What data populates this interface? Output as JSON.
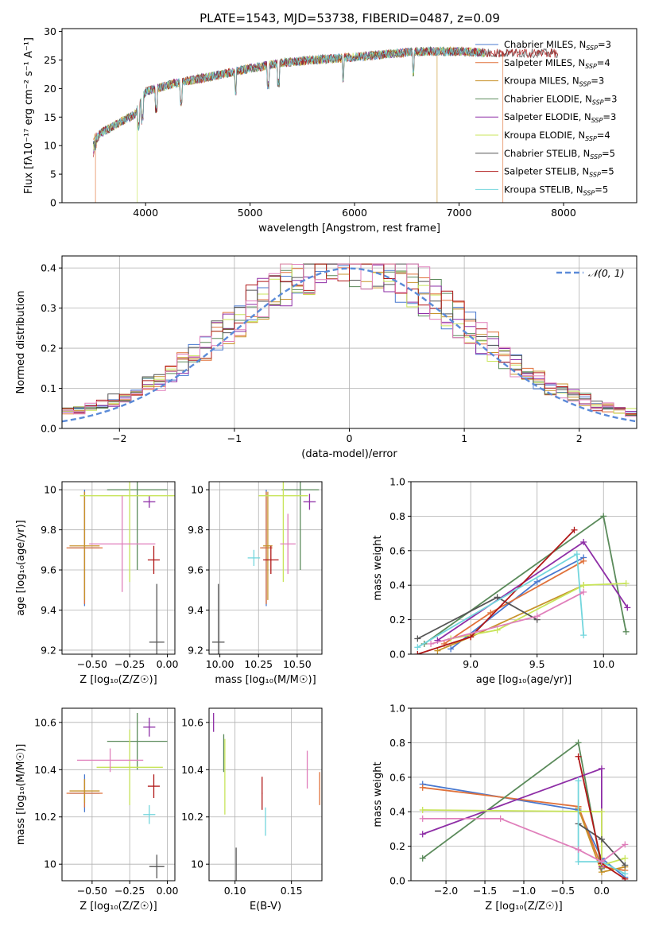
{
  "figure_title": "PLATE=1543, MJD=53738, FIBERID=0487, z=0.09",
  "colors": {
    "chabrier_miles": "#4878cf",
    "salpeter_miles": "#e0713a",
    "kroupa_miles": "#c8932b",
    "chabrier_elodie": "#5a8a5a",
    "salpeter_elodie": "#8e2ea6",
    "kroupa_elodie": "#c8e45a",
    "chabrier_stelib": "#555555",
    "salpeter_stelib": "#b01818",
    "kroupa_stelib": "#73d6dd",
    "pink": "#e07fbb",
    "gauss": "#5b8bd8"
  },
  "chart_data": [
    {
      "id": "spectrum",
      "type": "line",
      "title": "PLATE=1543, MJD=53738, FIBERID=0487, z=0.09",
      "xlabel": "wavelength [Angstrom, rest frame]",
      "ylabel": "Flux [fλ10⁻¹⁷ erg cm⁻² s⁻¹ A⁻¹]",
      "xlim": [
        3200,
        8700
      ],
      "ylim": [
        0,
        30.5
      ],
      "xticks": [
        4000,
        5000,
        6000,
        7000,
        8000
      ],
      "yticks": [
        0,
        5,
        10,
        15,
        20,
        25,
        30
      ],
      "grid": false,
      "legend_position": "right",
      "legend": [
        {
          "label": "Chabrier MILES, N",
          "sub": "SSP",
          "tail": "=3",
          "color": "chabrier_miles"
        },
        {
          "label": "Salpeter MILES, N",
          "sub": "SSP",
          "tail": "=4",
          "color": "salpeter_miles"
        },
        {
          "label": "Kroupa MILES, N",
          "sub": "SSP",
          "tail": "=3",
          "color": "kroupa_miles"
        },
        {
          "label": "Chabrier ELODIE, N",
          "sub": "SSP",
          "tail": "=3",
          "color": "chabrier_elodie"
        },
        {
          "label": "Salpeter ELODIE, N",
          "sub": "SSP",
          "tail": "=3",
          "color": "salpeter_elodie"
        },
        {
          "label": "Kroupa ELODIE, N",
          "sub": "SSP",
          "tail": "=4",
          "color": "kroupa_elodie"
        },
        {
          "label": "Chabrier STELIB, N",
          "sub": "SSP",
          "tail": "=5",
          "color": "chabrier_stelib"
        },
        {
          "label": "Salpeter STELIB, N",
          "sub": "SSP",
          "tail": "=5",
          "color": "salpeter_stelib"
        },
        {
          "label": "Kroupa STELIB, N",
          "sub": "SSP",
          "tail": "=5",
          "color": "kroupa_stelib"
        }
      ],
      "continuum": [
        [
          3500,
          11.5
        ],
        [
          3700,
          13.5
        ],
        [
          3900,
          15.5
        ],
        [
          4000,
          19.5
        ],
        [
          4300,
          21
        ],
        [
          4600,
          22
        ],
        [
          5000,
          23.5
        ],
        [
          5300,
          24.5
        ],
        [
          5600,
          25
        ],
        [
          6000,
          25.5
        ],
        [
          6300,
          26
        ],
        [
          6600,
          26.5
        ],
        [
          7000,
          26.5
        ],
        [
          7300,
          26.2
        ]
      ],
      "edges": [
        {
          "series": "salpeter_miles",
          "x": 3520
        },
        {
          "series": "kroupa_elodie",
          "x": 3920
        },
        {
          "series": "kroupa_miles",
          "x": 6790
        },
        {
          "series": "salpeter_miles",
          "x": 7420
        }
      ]
    },
    {
      "id": "residuals",
      "type": "bar",
      "xlabel": "(data-model)/error",
      "ylabel": "Normed distribution",
      "xlim": [
        -2.5,
        2.5
      ],
      "ylim": [
        0,
        0.43
      ],
      "xticks": [
        -2,
        -1,
        0,
        1,
        2
      ],
      "yticks": [
        0.0,
        0.1,
        0.2,
        0.3,
        0.4
      ],
      "grid": true,
      "legend_position": "top-right",
      "legend": [
        {
          "label": "𝒩(0, 1)",
          "color": "gauss",
          "style": "dashed"
        }
      ],
      "bin_width": 0.1,
      "series": [
        "chabrier_miles",
        "salpeter_miles",
        "kroupa_miles",
        "chabrier_elodie",
        "salpeter_elodie",
        "kroupa_elodie",
        "chabrier_stelib",
        "salpeter_stelib",
        "pink"
      ]
    },
    {
      "id": "age-vs-z",
      "type": "scatter",
      "xlabel": "Z [log₁₀(Z/Z☉)]",
      "ylabel": "age  [log₁₀(age/yr)]",
      "xlim": [
        -0.7,
        0.05
      ],
      "ylim": [
        9.18,
        10.04
      ],
      "xticks": [
        -0.5,
        -0.25,
        0.0
      ],
      "xticklabels": [
        "−0.50",
        "−0.25",
        "0.00"
      ],
      "yticks": [
        9.2,
        9.4,
        9.6,
        9.8,
        10.0
      ],
      "grid": true,
      "points": [
        {
          "x": -0.55,
          "y": 9.71,
          "xerr": 0.1,
          "yerr": 0.29,
          "color": "chabrier_miles"
        },
        {
          "x": -0.55,
          "y": 9.71,
          "xerr": 0.12,
          "yerr": 0.28,
          "color": "salpeter_miles"
        },
        {
          "x": -0.55,
          "y": 9.72,
          "xerr": 0.1,
          "yerr": 0.27,
          "color": "kroupa_miles"
        },
        {
          "x": -0.2,
          "y": 10.0,
          "xerr": 0.2,
          "yerr": 0.4,
          "color": "chabrier_elodie"
        },
        {
          "x": -0.12,
          "y": 9.94,
          "xerr": 0.04,
          "yerr": 0.03,
          "color": "salpeter_elodie"
        },
        {
          "x": -0.25,
          "y": 9.97,
          "xerr": 0.33,
          "yerr": 0.43,
          "color": "kroupa_elodie"
        },
        {
          "x": -0.07,
          "y": 9.24,
          "xerr": 0.05,
          "yerr": 0.29,
          "color": "chabrier_stelib"
        },
        {
          "x": -0.09,
          "y": 9.65,
          "xerr": 0.04,
          "yerr": 0.07,
          "color": "salpeter_stelib"
        },
        {
          "x": -0.3,
          "y": 9.73,
          "xerr": 0.22,
          "yerr": 0.24,
          "color": "pink"
        }
      ]
    },
    {
      "id": "age-vs-mass",
      "type": "scatter",
      "xlabel": "mass [log₁₀(M/M☉)]",
      "ylabel": "",
      "xlim": [
        9.93,
        10.66
      ],
      "ylim": [
        9.18,
        10.04
      ],
      "xticks": [
        10.0,
        10.25,
        10.5
      ],
      "xticklabels": [
        "10.00",
        "10.25",
        "10.50"
      ],
      "yticks": [
        9.2,
        9.4,
        9.6,
        9.8,
        10.0
      ],
      "grid": true,
      "points": [
        {
          "x": 10.3,
          "y": 9.71,
          "xerr": 0.03,
          "yerr": 0.29,
          "color": "chabrier_miles"
        },
        {
          "x": 10.3,
          "y": 9.71,
          "xerr": 0.04,
          "yerr": 0.28,
          "color": "salpeter_miles"
        },
        {
          "x": 10.31,
          "y": 9.72,
          "xerr": 0.03,
          "yerr": 0.27,
          "color": "kroupa_miles"
        },
        {
          "x": 10.52,
          "y": 10.0,
          "xerr": 0.12,
          "yerr": 0.4,
          "color": "chabrier_elodie"
        },
        {
          "x": 10.58,
          "y": 9.94,
          "xerr": 0.04,
          "yerr": 0.04,
          "color": "salpeter_elodie"
        },
        {
          "x": 10.41,
          "y": 9.97,
          "xerr": 0.16,
          "yerr": 0.43,
          "color": "kroupa_elodie"
        },
        {
          "x": 9.99,
          "y": 9.24,
          "xerr": 0.04,
          "yerr": 0.29,
          "color": "chabrier_stelib"
        },
        {
          "x": 10.33,
          "y": 9.65,
          "xerr": 0.05,
          "yerr": 0.07,
          "color": "salpeter_stelib"
        },
        {
          "x": 10.22,
          "y": 9.66,
          "xerr": 0.04,
          "yerr": 0.04,
          "color": "kroupa_stelib"
        },
        {
          "x": 10.44,
          "y": 9.73,
          "xerr": 0.05,
          "yerr": 0.15,
          "color": "pink"
        }
      ]
    },
    {
      "id": "weight-vs-age",
      "type": "line",
      "xlabel": "age  [log₁₀(age/yr)]",
      "ylabel": "mass weight",
      "xlim": [
        8.55,
        10.25
      ],
      "ylim": [
        0,
        1
      ],
      "xticks": [
        9.0,
        9.5,
        10.0
      ],
      "xticklabels": [
        "9.0",
        "9.5",
        "10.0"
      ],
      "yticks": [
        0.0,
        0.2,
        0.4,
        0.6,
        0.8,
        1.0
      ],
      "grid": true,
      "series": [
        {
          "color": "chabrier_miles",
          "points": [
            [
              8.85,
              0.03
            ],
            [
              9.5,
              0.42
            ],
            [
              9.85,
              0.56
            ]
          ]
        },
        {
          "color": "salpeter_miles",
          "points": [
            [
              8.8,
              0.06
            ],
            [
              9.15,
              0.24
            ],
            [
              9.85,
              0.54
            ]
          ]
        },
        {
          "color": "kroupa_miles",
          "points": [
            [
              8.75,
              0.02
            ],
            [
              9.0,
              0.1
            ],
            [
              9.85,
              0.4
            ]
          ]
        },
        {
          "color": "chabrier_elodie",
          "points": [
            [
              8.65,
              0.06
            ],
            [
              10.0,
              0.8
            ],
            [
              10.17,
              0.13
            ]
          ]
        },
        {
          "color": "salpeter_elodie",
          "points": [
            [
              8.75,
              0.08
            ],
            [
              9.85,
              0.65
            ],
            [
              10.18,
              0.27
            ]
          ]
        },
        {
          "color": "kroupa_elodie",
          "points": [
            [
              8.85,
              0.09
            ],
            [
              9.2,
              0.14
            ],
            [
              9.85,
              0.4
            ],
            [
              10.17,
              0.41
            ]
          ]
        },
        {
          "color": "chabrier_stelib",
          "points": [
            [
              8.6,
              0.09
            ],
            [
              9.2,
              0.33
            ],
            [
              9.5,
              0.2
            ]
          ]
        },
        {
          "color": "salpeter_stelib",
          "points": [
            [
              8.6,
              0.0
            ],
            [
              9.0,
              0.1
            ],
            [
              9.78,
              0.72
            ]
          ]
        },
        {
          "color": "kroupa_stelib",
          "points": [
            [
              8.6,
              0.04
            ],
            [
              9.8,
              0.58
            ],
            [
              9.85,
              0.11
            ]
          ]
        },
        {
          "color": "pink",
          "points": [
            [
              8.7,
              0.06
            ],
            [
              9.5,
              0.22
            ],
            [
              9.85,
              0.36
            ]
          ]
        }
      ]
    },
    {
      "id": "mass-vs-z",
      "type": "scatter",
      "xlabel": "Z [log₁₀(Z/Z☉)]",
      "ylabel": "mass [log₁₀(M/M☉)]",
      "xlim": [
        -0.7,
        0.05
      ],
      "ylim": [
        9.93,
        10.66
      ],
      "xticks": [
        -0.5,
        -0.25,
        0.0
      ],
      "xticklabels": [
        "−0.50",
        "−0.25",
        "0.00"
      ],
      "yticks": [
        10.0,
        10.2,
        10.4,
        10.6
      ],
      "grid": true,
      "points": [
        {
          "x": -0.55,
          "y": 10.3,
          "xerr": 0.1,
          "yerr": 0.08,
          "color": "chabrier_miles"
        },
        {
          "x": -0.55,
          "y": 10.3,
          "xerr": 0.12,
          "yerr": 0.06,
          "color": "salpeter_miles"
        },
        {
          "x": -0.55,
          "y": 10.31,
          "xerr": 0.1,
          "yerr": 0.05,
          "color": "kroupa_miles"
        },
        {
          "x": -0.2,
          "y": 10.52,
          "xerr": 0.2,
          "yerr": 0.12,
          "color": "chabrier_elodie"
        },
        {
          "x": -0.12,
          "y": 10.58,
          "xerr": 0.04,
          "yerr": 0.04,
          "color": "salpeter_elodie"
        },
        {
          "x": -0.25,
          "y": 10.41,
          "xerr": 0.22,
          "yerr": 0.16,
          "color": "kroupa_elodie"
        },
        {
          "x": -0.07,
          "y": 9.99,
          "xerr": 0.05,
          "yerr": 0.05,
          "color": "chabrier_stelib"
        },
        {
          "x": -0.09,
          "y": 10.33,
          "xerr": 0.04,
          "yerr": 0.05,
          "color": "salpeter_stelib"
        },
        {
          "x": -0.12,
          "y": 10.21,
          "xerr": 0.04,
          "yerr": 0.04,
          "color": "kroupa_stelib"
        },
        {
          "x": -0.38,
          "y": 10.44,
          "xerr": 0.22,
          "yerr": 0.05,
          "color": "pink"
        }
      ]
    },
    {
      "id": "mass-vs-ebv",
      "type": "scatter",
      "xlabel": "E(B-V)",
      "ylabel": "",
      "xlim": [
        0.077,
        0.177
      ],
      "ylim": [
        9.93,
        10.66
      ],
      "xticks": [
        0.1,
        0.15
      ],
      "xticklabels": [
        "0.10",
        "0.15"
      ],
      "yticks": [
        10.0,
        10.2,
        10.4,
        10.6
      ],
      "grid": true,
      "points": [
        {
          "x": 0.175,
          "y": 10.32,
          "xerr": 0,
          "yerr": 0.07,
          "color": "salpeter_miles"
        },
        {
          "x": 0.09,
          "y": 10.47,
          "xerr": 0,
          "yerr": 0.08,
          "color": "chabrier_elodie"
        },
        {
          "x": 0.081,
          "y": 10.6,
          "xerr": 0,
          "yerr": 0.04,
          "color": "salpeter_elodie"
        },
        {
          "x": 0.091,
          "y": 10.37,
          "xerr": 0,
          "yerr": 0.16,
          "color": "kroupa_elodie"
        },
        {
          "x": 0.101,
          "y": 10.0,
          "xerr": 0,
          "yerr": 0.07,
          "color": "chabrier_stelib"
        },
        {
          "x": 0.124,
          "y": 10.3,
          "xerr": 0,
          "yerr": 0.07,
          "color": "salpeter_stelib"
        },
        {
          "x": 0.127,
          "y": 10.18,
          "xerr": 0,
          "yerr": 0.06,
          "color": "kroupa_stelib"
        },
        {
          "x": 0.164,
          "y": 10.4,
          "xerr": 0,
          "yerr": 0.08,
          "color": "pink"
        }
      ]
    },
    {
      "id": "weight-vs-z",
      "type": "line",
      "xlabel": "Z [log₁₀(Z/Z☉)]",
      "ylabel": "mass weight",
      "xlim": [
        -2.45,
        0.45
      ],
      "ylim": [
        0,
        1
      ],
      "xticks": [
        -2.0,
        -1.5,
        -1.0,
        -0.5,
        0.0
      ],
      "xticklabels": [
        "−2.0",
        "−1.5",
        "−1.0",
        "−0.5",
        "0.0"
      ],
      "yticks": [
        0.0,
        0.2,
        0.4,
        0.6,
        0.8,
        1.0
      ],
      "grid": true,
      "series": [
        {
          "color": "chabrier_miles",
          "points": [
            [
              -2.3,
              0.56
            ],
            [
              -0.3,
              0.41
            ],
            [
              0.0,
              0.13
            ],
            [
              0.3,
              0.02
            ]
          ]
        },
        {
          "color": "salpeter_miles",
          "points": [
            [
              -2.3,
              0.54
            ],
            [
              -0.3,
              0.43
            ],
            [
              0.0,
              0.08
            ],
            [
              0.3,
              0.06
            ]
          ]
        },
        {
          "color": "kroupa_miles",
          "points": [
            [
              -0.3,
              0.42
            ],
            [
              0.0,
              0.05
            ],
            [
              0.3,
              0.08
            ]
          ]
        },
        {
          "color": "chabrier_elodie",
          "points": [
            [
              -2.3,
              0.13
            ],
            [
              -0.3,
              0.8
            ],
            [
              0.0,
              0.07
            ]
          ]
        },
        {
          "color": "salpeter_elodie",
          "points": [
            [
              -2.3,
              0.27
            ],
            [
              0.0,
              0.65
            ],
            [
              0.0,
              0.08
            ]
          ]
        },
        {
          "color": "kroupa_elodie",
          "points": [
            [
              -2.3,
              0.41
            ],
            [
              0.0,
              0.4
            ],
            [
              0.0,
              0.09
            ],
            [
              0.3,
              0.13
            ]
          ]
        },
        {
          "color": "chabrier_stelib",
          "points": [
            [
              -0.3,
              0.33
            ],
            [
              0.0,
              0.24
            ],
            [
              0.3,
              0.09
            ]
          ]
        },
        {
          "color": "salpeter_stelib",
          "points": [
            [
              -0.3,
              0.72
            ],
            [
              0.0,
              0.1
            ],
            [
              0.3,
              0.01
            ]
          ]
        },
        {
          "color": "kroupa_stelib",
          "points": [
            [
              -0.3,
              0.58
            ],
            [
              -0.3,
              0.11
            ],
            [
              0.0,
              0.11
            ],
            [
              0.3,
              0.04
            ]
          ]
        },
        {
          "color": "pink",
          "points": [
            [
              -2.3,
              0.36
            ],
            [
              -1.3,
              0.36
            ],
            [
              -0.3,
              0.18
            ],
            [
              0.0,
              0.11
            ],
            [
              0.3,
              0.21
            ]
          ]
        }
      ]
    }
  ]
}
